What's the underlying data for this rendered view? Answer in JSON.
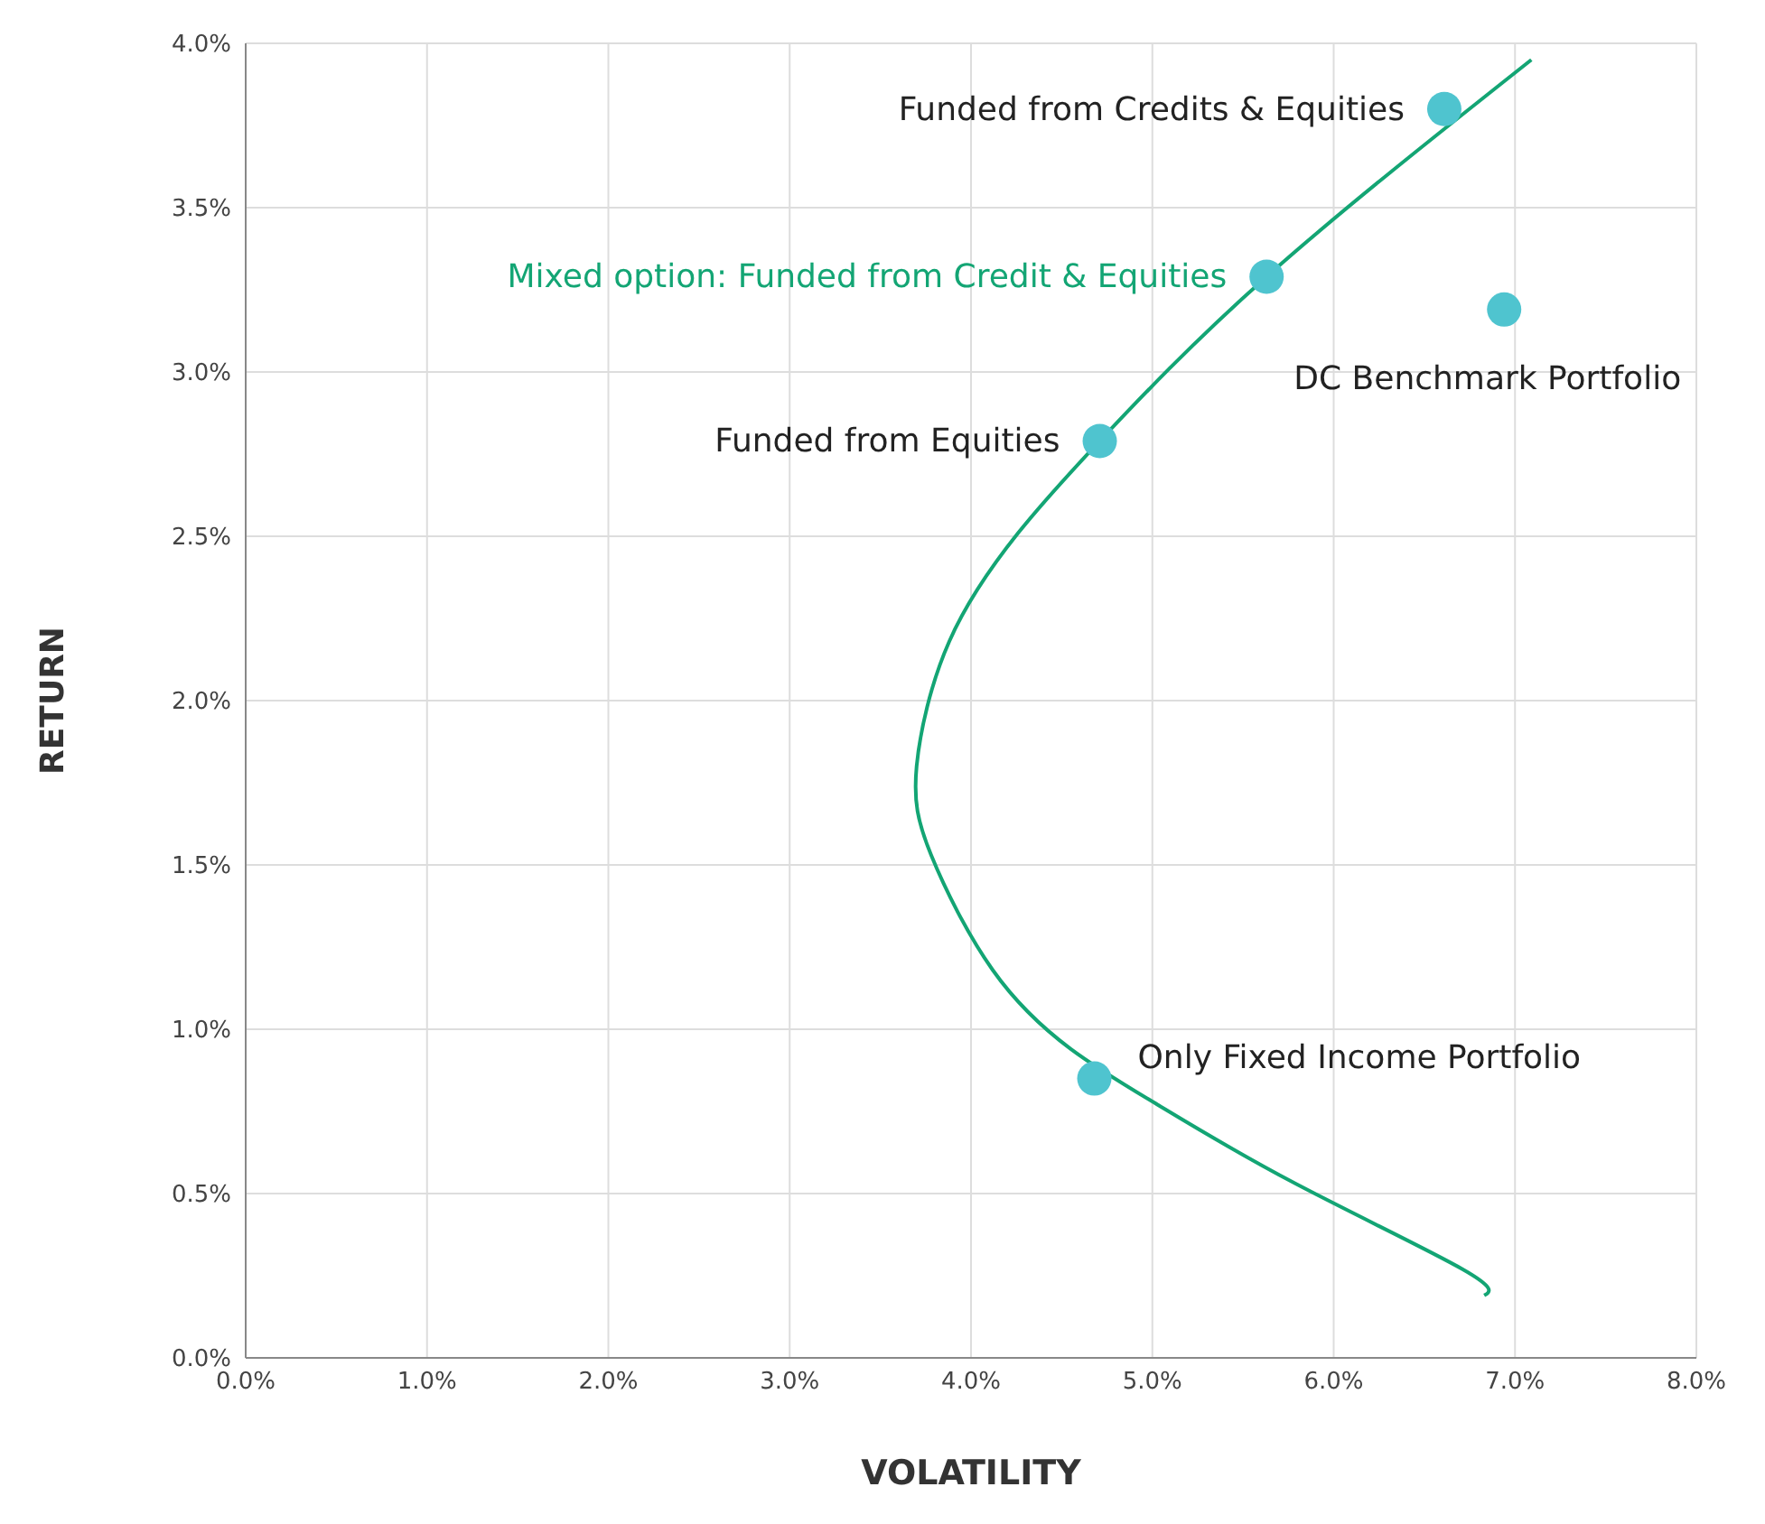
{
  "chart_data": {
    "type": "scatter",
    "xlabel": "VOLATILITY",
    "ylabel": "RETURN",
    "xlim": [
      0,
      8
    ],
    "ylim": [
      0,
      4
    ],
    "xticks": [
      {
        "value": 0,
        "label": "0.0%"
      },
      {
        "value": 1,
        "label": "1.0%"
      },
      {
        "value": 2,
        "label": "2.0%"
      },
      {
        "value": 3,
        "label": "3.0%"
      },
      {
        "value": 4,
        "label": "4.0%"
      },
      {
        "value": 5,
        "label": "5.0%"
      },
      {
        "value": 6,
        "label": "6.0%"
      },
      {
        "value": 7,
        "label": "7.0%"
      },
      {
        "value": 8,
        "label": "8.0%"
      }
    ],
    "yticks": [
      {
        "value": 0,
        "label": "0.0%"
      },
      {
        "value": 0.5,
        "label": "0.5%"
      },
      {
        "value": 1,
        "label": "1.0%"
      },
      {
        "value": 1.5,
        "label": "1.5%"
      },
      {
        "value": 2,
        "label": "2.0%"
      },
      {
        "value": 2.5,
        "label": "2.5%"
      },
      {
        "value": 3,
        "label": "3.0%"
      },
      {
        "value": 3.5,
        "label": "3.5%"
      },
      {
        "value": 4,
        "label": "4.0%"
      }
    ],
    "grid": true,
    "legend": false,
    "series": [
      {
        "type": "line",
        "color": "#13a574",
        "marker": "none",
        "line_style": "solid",
        "x": [
          6.83,
          6.71,
          5.79,
          5.03,
          4.55,
          4.12,
          3.78,
          3.7,
          3.88,
          4.26,
          4.71,
          5.63,
          7.09
        ],
        "values": [
          0.19,
          0.27,
          0.53,
          0.77,
          0.94,
          1.18,
          1.53,
          1.8,
          2.18,
          2.51,
          2.79,
          3.29,
          3.95
        ]
      },
      {
        "color": "#4fc4cf",
        "marker": "circle",
        "x": [
          6.61,
          5.63,
          6.94,
          4.71,
          4.68
        ],
        "values": [
          3.8,
          3.29,
          3.19,
          2.79,
          0.85
        ]
      }
    ],
    "annotations": [
      {
        "text": "Funded from Credits & Equities",
        "x": 6.61,
        "y": 3.8
      },
      {
        "text": "Mixed option: Funded from Credit & Equities",
        "x": 5.63,
        "y": 3.29
      },
      {
        "text": "DC Benchmark Portfolio",
        "x": 6.94,
        "y": 3.19
      },
      {
        "text": "Funded from Equities",
        "x": 4.71,
        "y": 2.79
      },
      {
        "text": "Only Fixed Income Portfolio",
        "x": 4.68,
        "y": 0.85
      }
    ]
  }
}
